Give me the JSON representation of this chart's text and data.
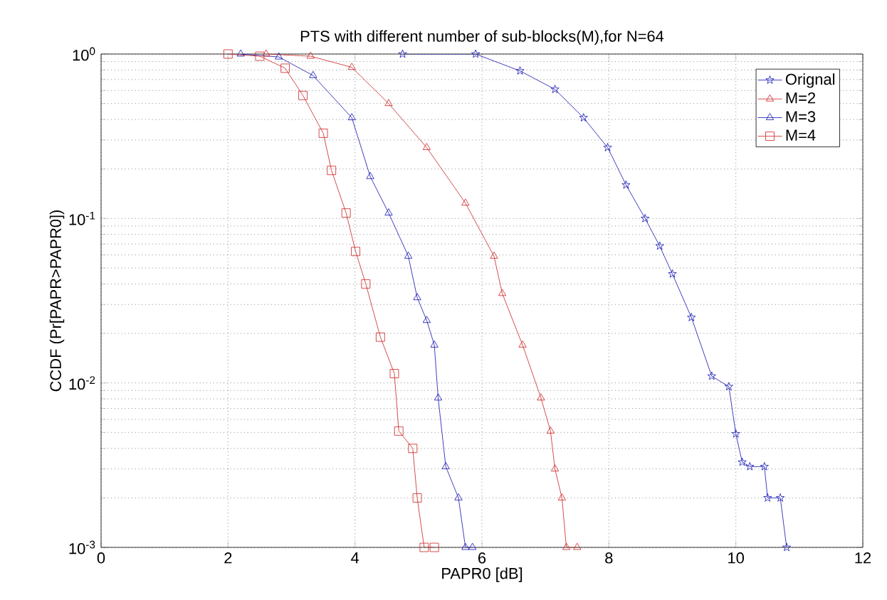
{
  "chart_data": {
    "type": "line",
    "title": "PTS with different number of sub-blocks(M),for N=64",
    "xlabel": "PAPR0 [dB]",
    "ylabel": "CCDF (Pr[PAPR>PAPR0])",
    "log": "y",
    "grid": true,
    "legend": "top right",
    "xlim": [
      0,
      12
    ],
    "xticks": [
      0,
      2,
      4,
      6,
      8,
      10,
      12
    ],
    "ylim": [
      0.001,
      1
    ],
    "yticks": [
      {
        "value": 0.001,
        "label": "10$^{-3}$"
      },
      {
        "value": 0.01,
        "label": "10$^{-2}$"
      },
      {
        "value": 0.1,
        "label": "10$^{-1}$"
      },
      {
        "value": 1,
        "label": "10$^{0}$"
      }
    ],
    "line_style": "solid",
    "series": [
      {
        "name": "Orignal",
        "color": "#1010b0",
        "marker": "star",
        "x": [
          4.75,
          5.9,
          6.6,
          7.15,
          7.6,
          7.98,
          8.27,
          8.57,
          8.8,
          9.0,
          9.3,
          9.62,
          9.89,
          10.0,
          10.1,
          10.22,
          10.45,
          10.5,
          10.7,
          10.8
        ],
        "values": [
          1,
          1,
          0.79,
          0.61,
          0.41,
          0.27,
          0.16,
          0.1,
          0.068,
          0.046,
          0.025,
          0.011,
          0.0095,
          0.0049,
          0.0033,
          0.0031,
          0.0031,
          0.002,
          0.002,
          0.001
        ]
      },
      {
        "name": "M=2",
        "color": "#cc2020",
        "marker": "triangle",
        "x": [
          2.6,
          3.3,
          3.95,
          4.53,
          5.13,
          5.74,
          6.19,
          6.32,
          6.64,
          6.93,
          7.08,
          7.15,
          7.26,
          7.33,
          7.5
        ],
        "values": [
          1,
          0.97,
          0.83,
          0.5,
          0.27,
          0.124,
          0.059,
          0.035,
          0.017,
          0.0081,
          0.0051,
          0.003,
          0.002,
          0.001,
          0.001
        ]
      },
      {
        "name": "M=3",
        "color": "#1010b0",
        "marker": "triangle",
        "x": [
          2.2,
          2.8,
          3.34,
          3.95,
          4.24,
          4.53,
          4.84,
          4.98,
          5.13,
          5.25,
          5.31,
          5.43,
          5.63,
          5.74,
          5.85
        ],
        "values": [
          1,
          0.96,
          0.74,
          0.41,
          0.18,
          0.108,
          0.059,
          0.033,
          0.024,
          0.017,
          0.0081,
          0.0031,
          0.002,
          0.001,
          0.001
        ]
      },
      {
        "name": "M=4",
        "color": "#cc2020",
        "marker": "square",
        "x": [
          2.0,
          2.5,
          2.9,
          3.18,
          3.5,
          3.63,
          3.86,
          4.01,
          4.17,
          4.4,
          4.62,
          4.69,
          4.91,
          4.98,
          5.09,
          5.25
        ],
        "values": [
          1,
          0.97,
          0.82,
          0.56,
          0.33,
          0.196,
          0.108,
          0.063,
          0.04,
          0.019,
          0.0114,
          0.0051,
          0.004,
          0.002,
          0.001,
          0.001
        ]
      }
    ]
  }
}
